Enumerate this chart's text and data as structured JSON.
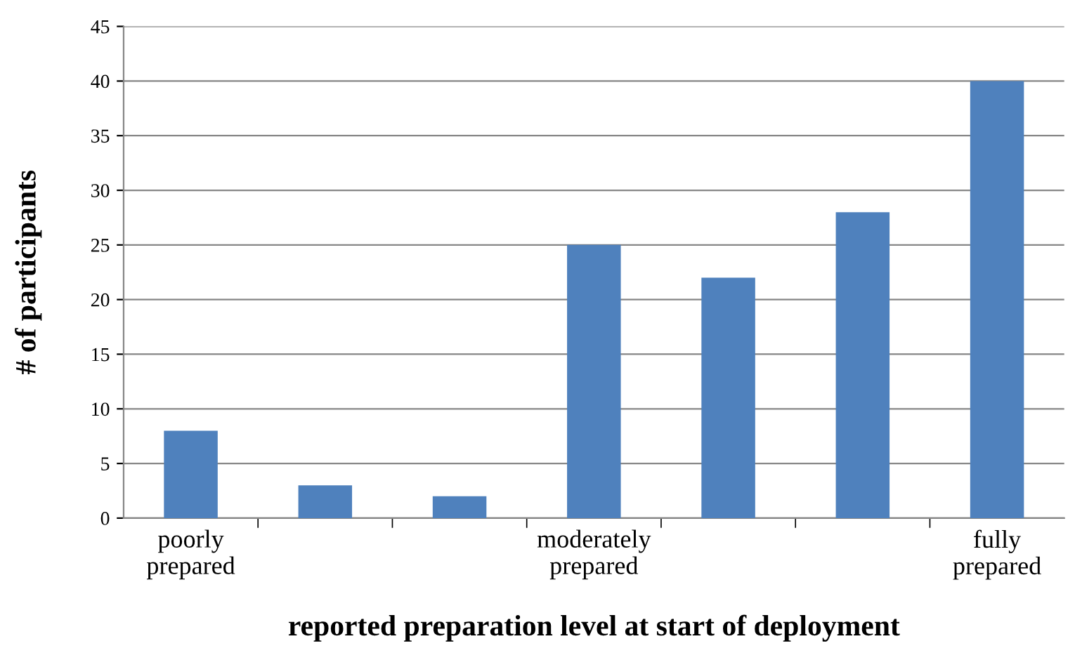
{
  "chart_data": {
    "type": "bar",
    "xlabel": "reported preparation level at start of deployment",
    "ylabel": "# of participants",
    "categories": [
      "poorly\nprepared",
      null,
      null,
      "moderately\nprepared",
      null,
      null,
      "fully\nprepared"
    ],
    "values": [
      8,
      3,
      2,
      25,
      22,
      28,
      40
    ],
    "color": "#4f81bd",
    "ylim": [
      0,
      45
    ],
    "yticks": [
      0,
      5,
      10,
      15,
      20,
      25,
      30,
      35,
      40,
      45
    ],
    "grid": "y"
  }
}
